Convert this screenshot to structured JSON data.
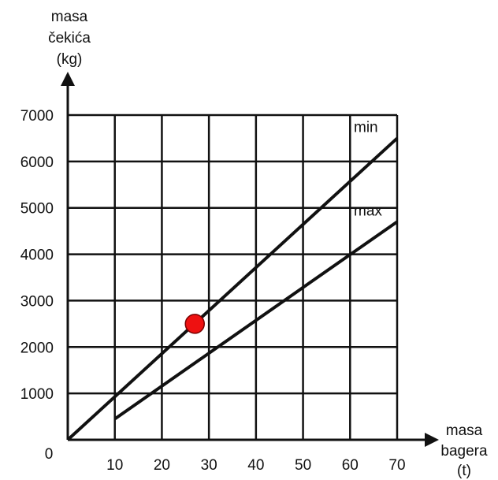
{
  "chart_data": {
    "type": "line",
    "xlabel": [
      "masa",
      "bagera",
      "(t)"
    ],
    "ylabel": [
      "masa",
      "čekića",
      "(kg)"
    ],
    "x_ticks": [
      "10",
      "20",
      "30",
      "40",
      "50",
      "60",
      "70"
    ],
    "y_ticks": [
      "0",
      "1000",
      "2000",
      "3000",
      "4000",
      "5000",
      "6000",
      "7000"
    ],
    "xlim": [
      0,
      70
    ],
    "ylim": [
      0,
      7000
    ],
    "grid": true,
    "series": [
      {
        "name": "min",
        "x": [
          0,
          70
        ],
        "y": [
          0,
          6500
        ]
      },
      {
        "name": "max",
        "x": [
          10,
          70
        ],
        "y": [
          450,
          4700
        ]
      }
    ],
    "marker": {
      "x": 27,
      "y": 2500,
      "color": "#ee1111"
    }
  }
}
